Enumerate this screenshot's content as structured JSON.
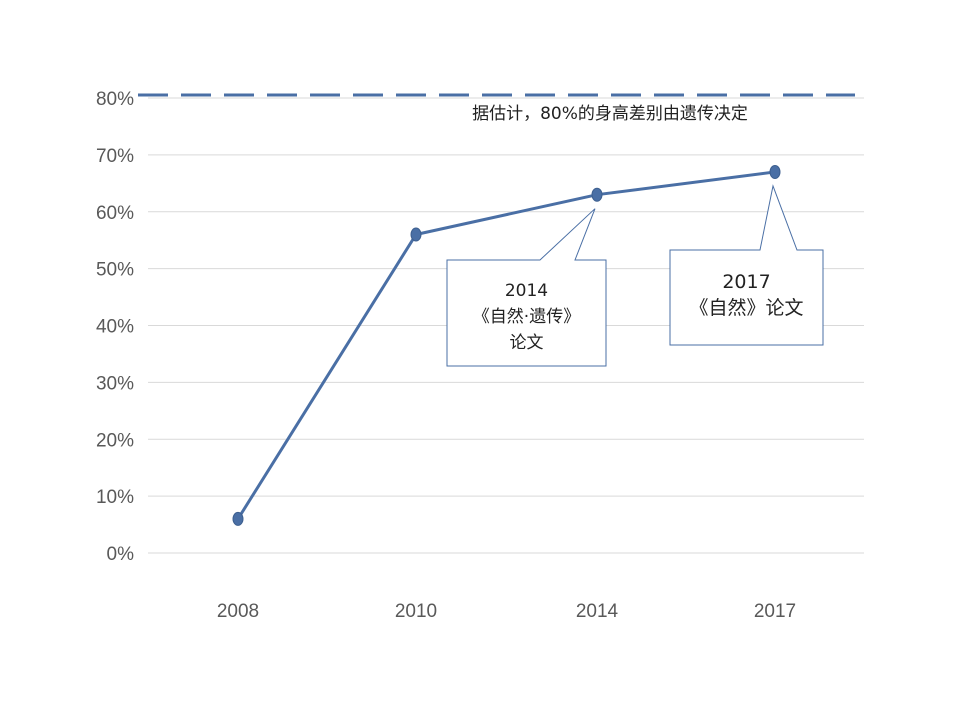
{
  "chart_data": {
    "type": "line",
    "categories": [
      "2008",
      "2010",
      "2014",
      "2017"
    ],
    "series": [
      {
        "values": [
          6,
          56,
          63,
          67
        ]
      }
    ],
    "ytick_labels": [
      "0%",
      "10%",
      "20%",
      "30%",
      "40%",
      "50%",
      "60%",
      "70%",
      "80%"
    ],
    "ylim": [
      0,
      80
    ],
    "y_unit": "%",
    "grid": true,
    "reference_line": {
      "value": 80,
      "style": "dashed",
      "label": "据估计，80%的身高差别由遗传决定"
    },
    "callouts": [
      {
        "category": "2014",
        "lines": [
          "2014",
          "《自然·遗传》",
          "论文"
        ]
      },
      {
        "category": "2017",
        "lines": [
          "2017",
          "《自然》论文"
        ]
      }
    ],
    "colors": {
      "line": "#4a6fa5",
      "reference": "#4a6fa5",
      "grid": "#d9d9d9",
      "callout_border": "#4a6fa5"
    }
  }
}
